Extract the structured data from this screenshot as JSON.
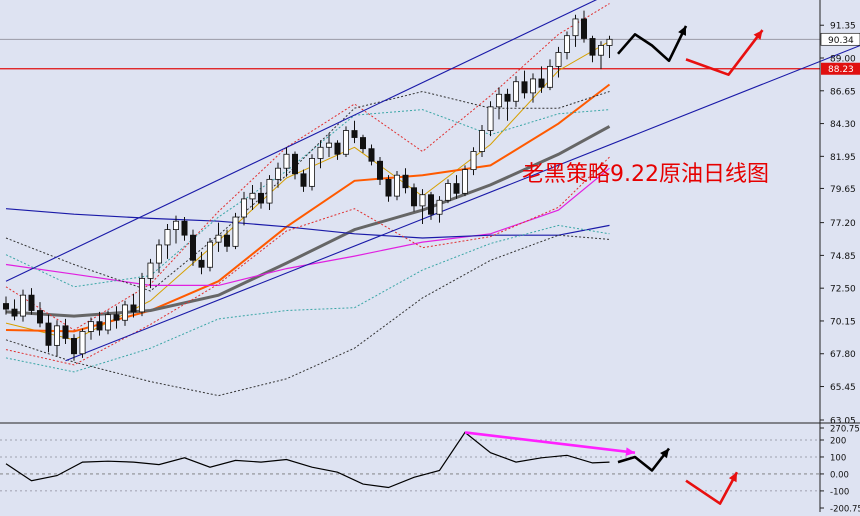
{
  "title": "老黑策略9.22原油日线图",
  "current_price_label": "90.34",
  "level_label": "88.23",
  "colors": {
    "background": "#dee3f2",
    "bull_candle": "#ffffff",
    "bear_candle": "#111111",
    "channel": "#1a1aa8",
    "level_line": "#e01010",
    "title_red": "#e60000",
    "ma_orange": "#ff5a00",
    "ma_gray": "#666666",
    "ma_magenta": "#e020e0",
    "ma_navy": "#1a1aa8",
    "bollinger_red": "#e03030",
    "bollinger_teal": "#3aa6a6",
    "bollinger_dark": "#333333",
    "arrow_black": "#000000",
    "arrow_red": "#e81010",
    "arrow_magenta": "#ff20ff"
  },
  "chart_data": [
    {
      "type": "candlestick",
      "title": "老黑策略9.22原油日线图",
      "y_ticks": [
        "91.35",
        "89.00",
        "86.65",
        "84.30",
        "81.95",
        "79.65",
        "77.20",
        "74.85",
        "72.50",
        "70.15",
        "67.80",
        "65.45",
        "63.05"
      ],
      "ylim": [
        63.05,
        92.8
      ],
      "current_price": 90.34,
      "horizontal_level": 88.23,
      "candles": [
        [
          71.4,
          71.9,
          70.6,
          71.0
        ],
        [
          71.0,
          71.7,
          70.2,
          70.5
        ],
        [
          70.5,
          72.4,
          70.1,
          72.0
        ],
        [
          72.0,
          72.5,
          70.6,
          70.9
        ],
        [
          70.9,
          71.5,
          69.7,
          70.0
        ],
        [
          70.0,
          70.6,
          67.9,
          68.4
        ],
        [
          68.4,
          70.2,
          67.6,
          69.8
        ],
        [
          69.8,
          70.3,
          68.5,
          68.9
        ],
        [
          68.9,
          69.2,
          67.3,
          67.8
        ],
        [
          67.8,
          69.6,
          67.5,
          69.4
        ],
        [
          69.4,
          70.4,
          68.8,
          70.1
        ],
        [
          70.1,
          70.8,
          69.1,
          69.5
        ],
        [
          69.5,
          70.9,
          69.2,
          70.6
        ],
        [
          70.6,
          71.2,
          69.6,
          70.2
        ],
        [
          70.2,
          71.6,
          69.8,
          71.3
        ],
        [
          71.3,
          72.1,
          70.4,
          70.8
        ],
        [
          70.8,
          73.6,
          70.5,
          73.2
        ],
        [
          73.2,
          74.6,
          72.5,
          74.3
        ],
        [
          74.3,
          76.0,
          73.6,
          75.6
        ],
        [
          75.6,
          77.1,
          74.6,
          76.7
        ],
        [
          76.7,
          77.7,
          75.7,
          77.3
        ],
        [
          77.3,
          77.6,
          75.9,
          76.3
        ],
        [
          76.3,
          76.7,
          74.1,
          74.5
        ],
        [
          74.5,
          75.1,
          73.5,
          74.0
        ],
        [
          74.0,
          76.1,
          73.7,
          75.8
        ],
        [
          75.8,
          77.2,
          75.1,
          76.3
        ],
        [
          76.3,
          76.7,
          75.1,
          75.5
        ],
        [
          75.5,
          77.9,
          75.3,
          77.6
        ],
        [
          77.6,
          79.4,
          77.0,
          78.9
        ],
        [
          78.9,
          79.9,
          78.1,
          79.3
        ],
        [
          79.3,
          80.1,
          78.2,
          78.6
        ],
        [
          78.6,
          80.6,
          78.1,
          80.3
        ],
        [
          80.3,
          81.5,
          79.7,
          81.1
        ],
        [
          81.1,
          82.6,
          80.5,
          82.1
        ],
        [
          82.1,
          82.3,
          80.3,
          80.7
        ],
        [
          80.7,
          81.0,
          79.4,
          79.8
        ],
        [
          79.8,
          82.1,
          79.5,
          81.8
        ],
        [
          81.8,
          83.1,
          81.1,
          82.6
        ],
        [
          82.6,
          83.6,
          81.9,
          82.9
        ],
        [
          82.9,
          83.1,
          81.7,
          82.1
        ],
        [
          82.1,
          84.1,
          81.9,
          83.8
        ],
        [
          83.8,
          84.5,
          82.9,
          83.3
        ],
        [
          83.3,
          83.5,
          82.2,
          82.5
        ],
        [
          82.5,
          82.8,
          81.3,
          81.6
        ],
        [
          81.6,
          81.9,
          79.9,
          80.3
        ],
        [
          80.3,
          80.6,
          78.7,
          79.1
        ],
        [
          79.1,
          80.9,
          78.8,
          80.6
        ],
        [
          80.6,
          81.1,
          79.3,
          79.7
        ],
        [
          79.7,
          80.0,
          78.0,
          78.4
        ],
        [
          78.4,
          79.6,
          77.1,
          79.2
        ],
        [
          79.2,
          79.4,
          77.4,
          77.8
        ],
        [
          77.8,
          79.1,
          77.2,
          78.8
        ],
        [
          78.8,
          80.3,
          78.6,
          80.0
        ],
        [
          80.0,
          80.6,
          78.9,
          79.3
        ],
        [
          79.3,
          81.3,
          79.1,
          81.0
        ],
        [
          81.0,
          82.6,
          80.6,
          82.3
        ],
        [
          82.3,
          84.2,
          81.9,
          83.8
        ],
        [
          83.8,
          85.9,
          83.4,
          85.5
        ],
        [
          85.5,
          86.9,
          84.6,
          86.4
        ],
        [
          86.4,
          86.8,
          84.5,
          85.9
        ],
        [
          85.9,
          87.7,
          85.5,
          87.3
        ],
        [
          87.3,
          88.1,
          86.1,
          86.5
        ],
        [
          86.5,
          87.9,
          85.8,
          87.5
        ],
        [
          87.5,
          88.4,
          86.5,
          86.9
        ],
        [
          86.9,
          88.9,
          86.7,
          88.4
        ],
        [
          88.4,
          89.8,
          87.6,
          89.4
        ],
        [
          89.4,
          90.9,
          88.9,
          90.6
        ],
        [
          90.6,
          92.1,
          89.8,
          91.8
        ],
        [
          91.8,
          92.4,
          90.1,
          90.4
        ],
        [
          90.4,
          90.6,
          88.7,
          89.2
        ],
        [
          89.2,
          90.2,
          88.2,
          89.9
        ],
        [
          89.9,
          90.6,
          89.0,
          90.34
        ]
      ],
      "series": [
        {
          "name": "",
          "kind": "ma-fast",
          "x": [
            0,
            8,
            17,
            25,
            33,
            41,
            49,
            57,
            65,
            71
          ],
          "y": [
            70.0,
            68.8,
            71.6,
            75.9,
            80.4,
            82.6,
            79.1,
            82.8,
            88.1,
            90.2
          ]
        },
        {
          "name": "",
          "kind": "ma-orange",
          "x": [
            0,
            8,
            17,
            25,
            33,
            41,
            49,
            57,
            65,
            71
          ],
          "y": [
            69.5,
            69.4,
            70.9,
            73.0,
            76.9,
            80.2,
            80.6,
            81.3,
            84.3,
            87.1
          ]
        },
        {
          "name": "",
          "kind": "ma-gray",
          "x": [
            0,
            8,
            17,
            25,
            33,
            41,
            49,
            57,
            65,
            71
          ],
          "y": [
            70.8,
            70.5,
            70.9,
            72.0,
            74.3,
            76.7,
            78.1,
            79.9,
            82.1,
            84.1
          ]
        },
        {
          "name": "",
          "kind": "ma-magenta",
          "x": [
            0,
            8,
            17,
            25,
            33,
            41,
            49,
            57,
            65,
            71
          ],
          "y": [
            74.2,
            73.5,
            72.7,
            72.7,
            73.9,
            74.8,
            75.8,
            76.4,
            78.1,
            81.1
          ]
        },
        {
          "name": "",
          "kind": "ma-navy",
          "x": [
            0,
            8,
            17,
            25,
            33,
            41,
            49,
            57,
            65,
            71
          ],
          "y": [
            78.2,
            77.8,
            77.5,
            77.3,
            76.9,
            76.4,
            76.1,
            76.3,
            76.3,
            77.0
          ]
        },
        {
          "name": "",
          "kind": "bb-red-upper",
          "x": [
            0,
            8,
            17,
            25,
            33,
            41,
            49,
            57,
            65,
            71
          ],
          "y": [
            72.6,
            69.5,
            72.8,
            78.0,
            82.6,
            85.7,
            82.3,
            86.3,
            90.7,
            92.9
          ]
        },
        {
          "name": "",
          "kind": "bb-red-lower",
          "x": [
            0,
            8,
            17,
            25,
            33,
            41,
            49,
            57,
            65,
            71
          ],
          "y": [
            68.1,
            67.0,
            69.9,
            72.8,
            76.6,
            78.2,
            75.4,
            76.2,
            78.3,
            81.9
          ]
        },
        {
          "name": "",
          "kind": "bb-teal-upper",
          "x": [
            0,
            8,
            17,
            25,
            33,
            41,
            49,
            57,
            65,
            71
          ],
          "y": [
            74.9,
            72.6,
            73.4,
            77.6,
            80.9,
            84.9,
            85.3,
            83.5,
            85.0,
            85.3
          ]
        },
        {
          "name": "",
          "kind": "bb-teal-lower",
          "x": [
            0,
            8,
            17,
            25,
            33,
            41,
            49,
            57,
            65,
            71
          ],
          "y": [
            67.5,
            66.5,
            68.2,
            70.3,
            70.9,
            71.1,
            73.8,
            75.7,
            77.0,
            76.4
          ]
        },
        {
          "name": "",
          "kind": "bb-dark-upper",
          "x": [
            0,
            8,
            17,
            25,
            33,
            41,
            49,
            57,
            65,
            71
          ],
          "y": [
            76.1,
            74.2,
            72.3,
            76.3,
            80.6,
            85.4,
            86.6,
            85.4,
            85.4,
            86.6
          ]
        },
        {
          "name": "",
          "kind": "bb-dark-lower",
          "x": [
            0,
            8,
            17,
            25,
            33,
            41,
            49,
            57,
            65,
            71
          ],
          "y": [
            68.8,
            67.2,
            65.8,
            64.8,
            66.0,
            68.2,
            71.8,
            74.5,
            76.3,
            76.0
          ]
        }
      ],
      "channel": {
        "lower_start": [
          7,
          67.3
        ],
        "lower_end": [
          110,
          92.2
        ],
        "upper_start": [
          0,
          73.0
        ],
        "upper_end": [
          74,
          94.5
        ]
      },
      "projection_black": [
        [
          72,
          89.3
        ],
        [
          74,
          90.7
        ],
        [
          76,
          89.9
        ],
        [
          78,
          88.8
        ],
        [
          80,
          91.3
        ]
      ],
      "projection_red": [
        [
          80,
          88.9
        ],
        [
          85,
          87.8
        ],
        [
          89,
          91.0
        ]
      ]
    },
    {
      "type": "line",
      "y_ticks": [
        "270.755",
        "200",
        "100",
        "0.00",
        "-100",
        "-200.755"
      ],
      "ylim": [
        -200.755,
        270.755
      ],
      "hline": 0,
      "x": [
        0,
        3,
        6,
        9,
        12,
        15,
        18,
        21,
        24,
        27,
        30,
        33,
        36,
        39,
        42,
        45,
        48,
        51,
        54,
        57,
        60,
        63,
        66,
        69,
        71
      ],
      "y": [
        60,
        -40,
        -10,
        70,
        75,
        70,
        55,
        95,
        40,
        80,
        70,
        85,
        40,
        10,
        -60,
        -80,
        -20,
        20,
        245,
        125,
        70,
        95,
        110,
        65,
        70
      ],
      "projection_black": [
        [
          72,
          70
        ],
        [
          74,
          100
        ],
        [
          76,
          20
        ],
        [
          78,
          150
        ]
      ],
      "projection_red": [
        [
          80,
          -40
        ],
        [
          84,
          -175
        ],
        [
          86,
          10
        ]
      ],
      "projection_magenta": [
        [
          54,
          245
        ],
        [
          74,
          125
        ]
      ]
    }
  ]
}
